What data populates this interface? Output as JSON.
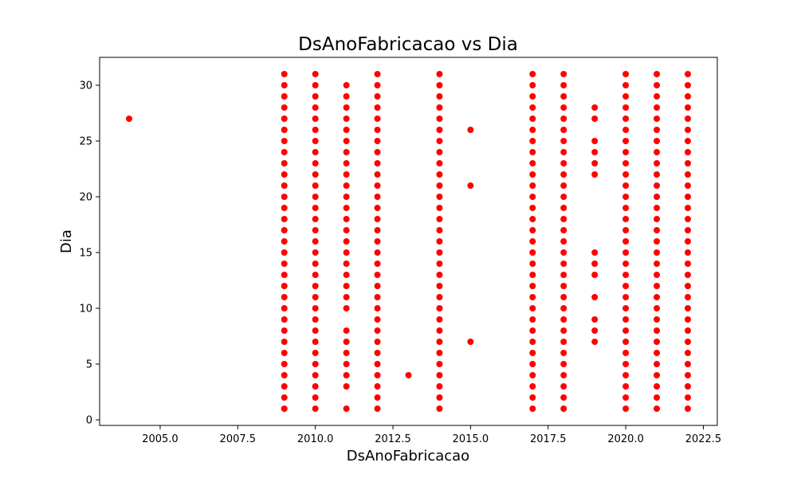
{
  "chart_data": {
    "type": "scatter",
    "title": "DsAnoFabricacao vs Dia",
    "xlabel": "DsAnoFabricacao",
    "ylabel": "Dia",
    "xlim": [
      2003.05,
      2022.95
    ],
    "ylim": [
      -0.5,
      32.5
    ],
    "xticks": [
      2005.0,
      2007.5,
      2010.0,
      2012.5,
      2015.0,
      2017.5,
      2020.0,
      2022.5
    ],
    "xtick_labels": [
      "2005.0",
      "2007.5",
      "2010.0",
      "2012.5",
      "2015.0",
      "2017.5",
      "2020.0",
      "2022.5"
    ],
    "yticks": [
      0,
      5,
      10,
      15,
      20,
      25,
      30
    ],
    "ytick_labels": [
      "0",
      "5",
      "10",
      "15",
      "20",
      "25",
      "30"
    ],
    "grid": false,
    "marker_color": "#ff0000",
    "groups": [
      {
        "x": 2004,
        "y": [
          27
        ]
      },
      {
        "x": 2009,
        "y": [
          1,
          2,
          3,
          4,
          5,
          6,
          7,
          8,
          9,
          10,
          11,
          12,
          13,
          14,
          15,
          16,
          17,
          18,
          19,
          20,
          21,
          22,
          23,
          24,
          25,
          26,
          27,
          28,
          29,
          30,
          31
        ]
      },
      {
        "x": 2010,
        "y": [
          1,
          2,
          3,
          4,
          5,
          6,
          7,
          8,
          9,
          10,
          11,
          12,
          13,
          14,
          15,
          16,
          17,
          18,
          19,
          20,
          21,
          22,
          23,
          24,
          25,
          26,
          27,
          28,
          29,
          30,
          31
        ]
      },
      {
        "x": 2011,
        "y": [
          1,
          3,
          4,
          5,
          6,
          7,
          8,
          10,
          11,
          12,
          13,
          14,
          15,
          16,
          17,
          18,
          19,
          20,
          21,
          22,
          23,
          24,
          25,
          26,
          27,
          28,
          29,
          30
        ]
      },
      {
        "x": 2012,
        "y": [
          1,
          2,
          3,
          4,
          5,
          6,
          7,
          8,
          9,
          10,
          11,
          12,
          13,
          14,
          15,
          16,
          17,
          18,
          19,
          20,
          21,
          22,
          23,
          24,
          25,
          26,
          27,
          28,
          29,
          30,
          31
        ]
      },
      {
        "x": 2013,
        "y": [
          4
        ]
      },
      {
        "x": 2014,
        "y": [
          1,
          2,
          3,
          4,
          5,
          6,
          7,
          8,
          9,
          10,
          11,
          12,
          13,
          14,
          15,
          16,
          17,
          18,
          19,
          20,
          21,
          22,
          23,
          24,
          25,
          26,
          27,
          28,
          29,
          30,
          31
        ]
      },
      {
        "x": 2015,
        "y": [
          7,
          21,
          26
        ]
      },
      {
        "x": 2017,
        "y": [
          1,
          2,
          3,
          4,
          5,
          6,
          7,
          8,
          9,
          10,
          11,
          12,
          13,
          14,
          15,
          16,
          17,
          18,
          19,
          20,
          21,
          22,
          23,
          24,
          25,
          26,
          27,
          28,
          29,
          30,
          31
        ]
      },
      {
        "x": 2018,
        "y": [
          1,
          2,
          3,
          4,
          5,
          6,
          7,
          8,
          9,
          10,
          11,
          12,
          13,
          14,
          15,
          16,
          17,
          18,
          19,
          20,
          21,
          22,
          23,
          24,
          25,
          26,
          27,
          28,
          29,
          30,
          31
        ]
      },
      {
        "x": 2019,
        "y": [
          7,
          8,
          9,
          11,
          13,
          14,
          15,
          22,
          23,
          24,
          25,
          27,
          28
        ]
      },
      {
        "x": 2020,
        "y": [
          1,
          2,
          3,
          4,
          5,
          6,
          7,
          8,
          9,
          10,
          11,
          12,
          13,
          14,
          15,
          16,
          17,
          18,
          19,
          20,
          21,
          22,
          23,
          24,
          25,
          26,
          27,
          28,
          29,
          30,
          31
        ]
      },
      {
        "x": 2021,
        "y": [
          1,
          2,
          3,
          4,
          5,
          6,
          7,
          8,
          9,
          10,
          11,
          12,
          13,
          14,
          15,
          16,
          17,
          18,
          19,
          20,
          21,
          22,
          23,
          24,
          25,
          26,
          27,
          28,
          29,
          30,
          31
        ]
      },
      {
        "x": 2022,
        "y": [
          1,
          2,
          3,
          4,
          5,
          6,
          7,
          8,
          9,
          10,
          11,
          12,
          13,
          14,
          15,
          16,
          17,
          18,
          19,
          20,
          21,
          22,
          23,
          24,
          25,
          26,
          27,
          28,
          29,
          30,
          31
        ]
      }
    ]
  }
}
